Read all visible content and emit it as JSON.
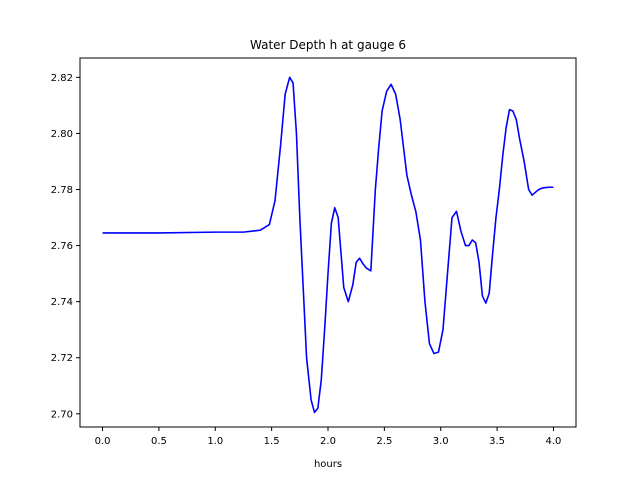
{
  "chart_data": {
    "type": "line",
    "title": "Water Depth h at gauge 6",
    "xlabel": "hours",
    "ylabel": "",
    "xlim": [
      -0.2,
      4.2
    ],
    "ylim": [
      2.6953,
      2.8269
    ],
    "xticks": [
      0.0,
      0.5,
      1.0,
      1.5,
      2.0,
      2.5,
      3.0,
      3.5,
      4.0
    ],
    "xtick_labels": [
      "0.0",
      "0.5",
      "1.0",
      "1.5",
      "2.0",
      "2.5",
      "3.0",
      "3.5",
      "4.0"
    ],
    "yticks": [
      2.7,
      2.72,
      2.74,
      2.76,
      2.78,
      2.8,
      2.82
    ],
    "ytick_labels": [
      "2.70",
      "2.72",
      "2.74",
      "2.76",
      "2.78",
      "2.80",
      "2.82"
    ],
    "grid": false,
    "series": [
      {
        "color": "#0000ff",
        "x": [
          0.0,
          0.5,
          1.0,
          1.25,
          1.4,
          1.48,
          1.53,
          1.58,
          1.62,
          1.66,
          1.69,
          1.72,
          1.75,
          1.78,
          1.81,
          1.85,
          1.88,
          1.91,
          1.94,
          1.97,
          2.0,
          2.03,
          2.06,
          2.09,
          2.11,
          2.14,
          2.18,
          2.22,
          2.25,
          2.28,
          2.31,
          2.34,
          2.38,
          2.42,
          2.45,
          2.48,
          2.52,
          2.56,
          2.6,
          2.64,
          2.67,
          2.7,
          2.74,
          2.78,
          2.82,
          2.86,
          2.9,
          2.94,
          2.98,
          3.02,
          3.06,
          3.1,
          3.14,
          3.18,
          3.22,
          3.25,
          3.28,
          3.31,
          3.34,
          3.37,
          3.4,
          3.43,
          3.46,
          3.49,
          3.52,
          3.55,
          3.58,
          3.61,
          3.64,
          3.67,
          3.7,
          3.74,
          3.78,
          3.81,
          3.84,
          3.87,
          3.9,
          3.93,
          3.96,
          4.0
        ],
        "y": [
          2.7645,
          2.7645,
          2.7648,
          2.7648,
          2.7655,
          2.7675,
          2.776,
          2.796,
          2.814,
          2.82,
          2.818,
          2.8,
          2.77,
          2.745,
          2.72,
          2.705,
          2.7005,
          2.702,
          2.712,
          2.73,
          2.75,
          2.768,
          2.7735,
          2.77,
          2.76,
          2.745,
          2.74,
          2.746,
          2.754,
          2.7555,
          2.7535,
          2.752,
          2.751,
          2.78,
          2.795,
          2.808,
          2.815,
          2.8175,
          2.814,
          2.805,
          2.795,
          2.785,
          2.778,
          2.772,
          2.762,
          2.74,
          2.725,
          2.7215,
          2.722,
          2.73,
          2.75,
          2.77,
          2.7722,
          2.765,
          2.76,
          2.76,
          2.762,
          2.761,
          2.754,
          2.742,
          2.7395,
          2.743,
          2.757,
          2.77,
          2.78,
          2.792,
          2.802,
          2.8085,
          2.808,
          2.805,
          2.798,
          2.79,
          2.78,
          2.778,
          2.779,
          2.78,
          2.7805,
          2.7807,
          2.7808,
          2.7808
        ]
      }
    ]
  }
}
